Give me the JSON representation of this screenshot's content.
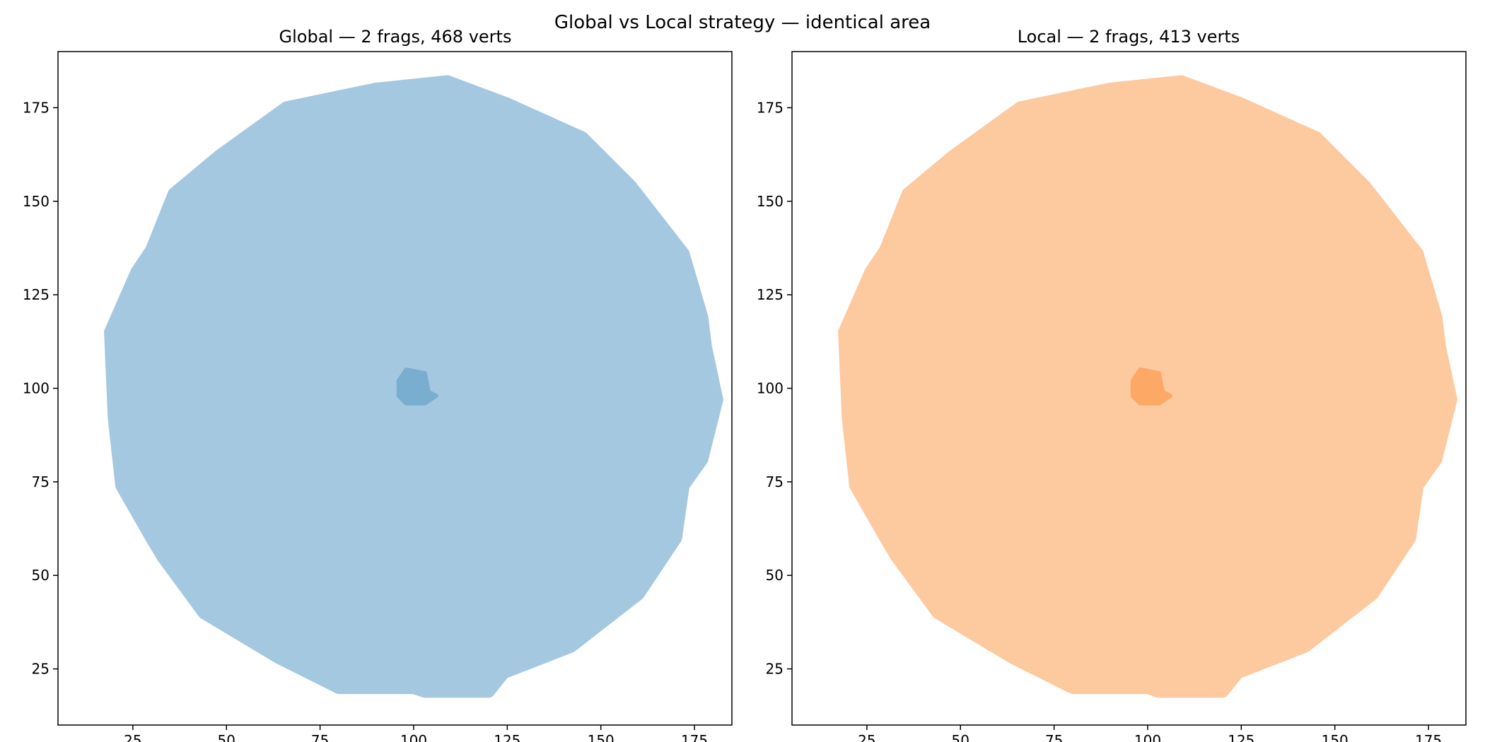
{
  "chart_data": {
    "title": "Global vs Local strategy — identical area",
    "panels": [
      {
        "title": "Global — 2 frags, 468 verts",
        "type": "area",
        "fill_color": "#a5c8e1",
        "inner_color": "#7aaed1",
        "xlim": [
          5,
          185
        ],
        "ylim": [
          10,
          190
        ],
        "xticks": [
          25,
          50,
          75,
          100,
          125,
          150,
          175
        ],
        "yticks": [
          25,
          50,
          75,
          100,
          125,
          150,
          175
        ],
        "outline": [
          [
            109,
            182
          ],
          [
            125,
            176
          ],
          [
            145,
            167
          ],
          [
            158,
            154
          ],
          [
            172,
            136
          ],
          [
            177,
            119
          ],
          [
            178,
            111
          ],
          [
            181,
            97
          ],
          [
            177,
            81
          ],
          [
            172,
            74
          ],
          [
            170,
            60
          ],
          [
            160,
            45
          ],
          [
            142,
            31
          ],
          [
            124,
            24
          ],
          [
            120,
            19
          ],
          [
            103,
            19
          ],
          [
            100,
            20
          ],
          [
            80,
            20
          ],
          [
            64,
            28
          ],
          [
            44,
            40
          ],
          [
            33,
            55
          ],
          [
            30,
            60
          ],
          [
            22,
            74
          ],
          [
            20,
            92
          ],
          [
            19,
            115
          ],
          [
            26,
            131
          ],
          [
            30,
            137
          ],
          [
            36,
            152
          ],
          [
            48,
            162
          ],
          [
            66,
            175
          ],
          [
            90,
            180
          ]
        ],
        "inner_blob": [
          [
            98,
            105
          ],
          [
            103,
            104
          ],
          [
            104,
            99
          ],
          [
            106,
            98
          ],
          [
            103,
            96
          ],
          [
            98,
            96
          ],
          [
            96,
            98
          ],
          [
            96,
            102
          ]
        ]
      },
      {
        "title": "Local — 2 frags, 413 verts",
        "type": "area",
        "fill_color": "#fdc99f",
        "inner_color": "#fda865",
        "xlim": [
          5,
          185
        ],
        "ylim": [
          10,
          190
        ],
        "xticks": [
          25,
          50,
          75,
          100,
          125,
          150,
          175
        ],
        "yticks": [
          25,
          50,
          75,
          100,
          125,
          150,
          175
        ],
        "outline": [
          [
            109,
            182
          ],
          [
            125,
            176
          ],
          [
            145,
            167
          ],
          [
            158,
            154
          ],
          [
            172,
            136
          ],
          [
            177,
            119
          ],
          [
            178,
            111
          ],
          [
            181,
            97
          ],
          [
            177,
            81
          ],
          [
            172,
            74
          ],
          [
            170,
            60
          ],
          [
            160,
            45
          ],
          [
            142,
            31
          ],
          [
            124,
            24
          ],
          [
            120,
            19
          ],
          [
            103,
            19
          ],
          [
            100,
            20
          ],
          [
            80,
            20
          ],
          [
            64,
            28
          ],
          [
            44,
            40
          ],
          [
            33,
            55
          ],
          [
            30,
            60
          ],
          [
            22,
            74
          ],
          [
            20,
            92
          ],
          [
            19,
            115
          ],
          [
            26,
            131
          ],
          [
            30,
            137
          ],
          [
            36,
            152
          ],
          [
            48,
            162
          ],
          [
            66,
            175
          ],
          [
            90,
            180
          ]
        ],
        "inner_blob": [
          [
            98,
            105
          ],
          [
            103,
            104
          ],
          [
            104,
            99
          ],
          [
            106,
            98
          ],
          [
            103,
            96
          ],
          [
            98,
            96
          ],
          [
            96,
            98
          ],
          [
            96,
            102
          ]
        ]
      }
    ]
  }
}
